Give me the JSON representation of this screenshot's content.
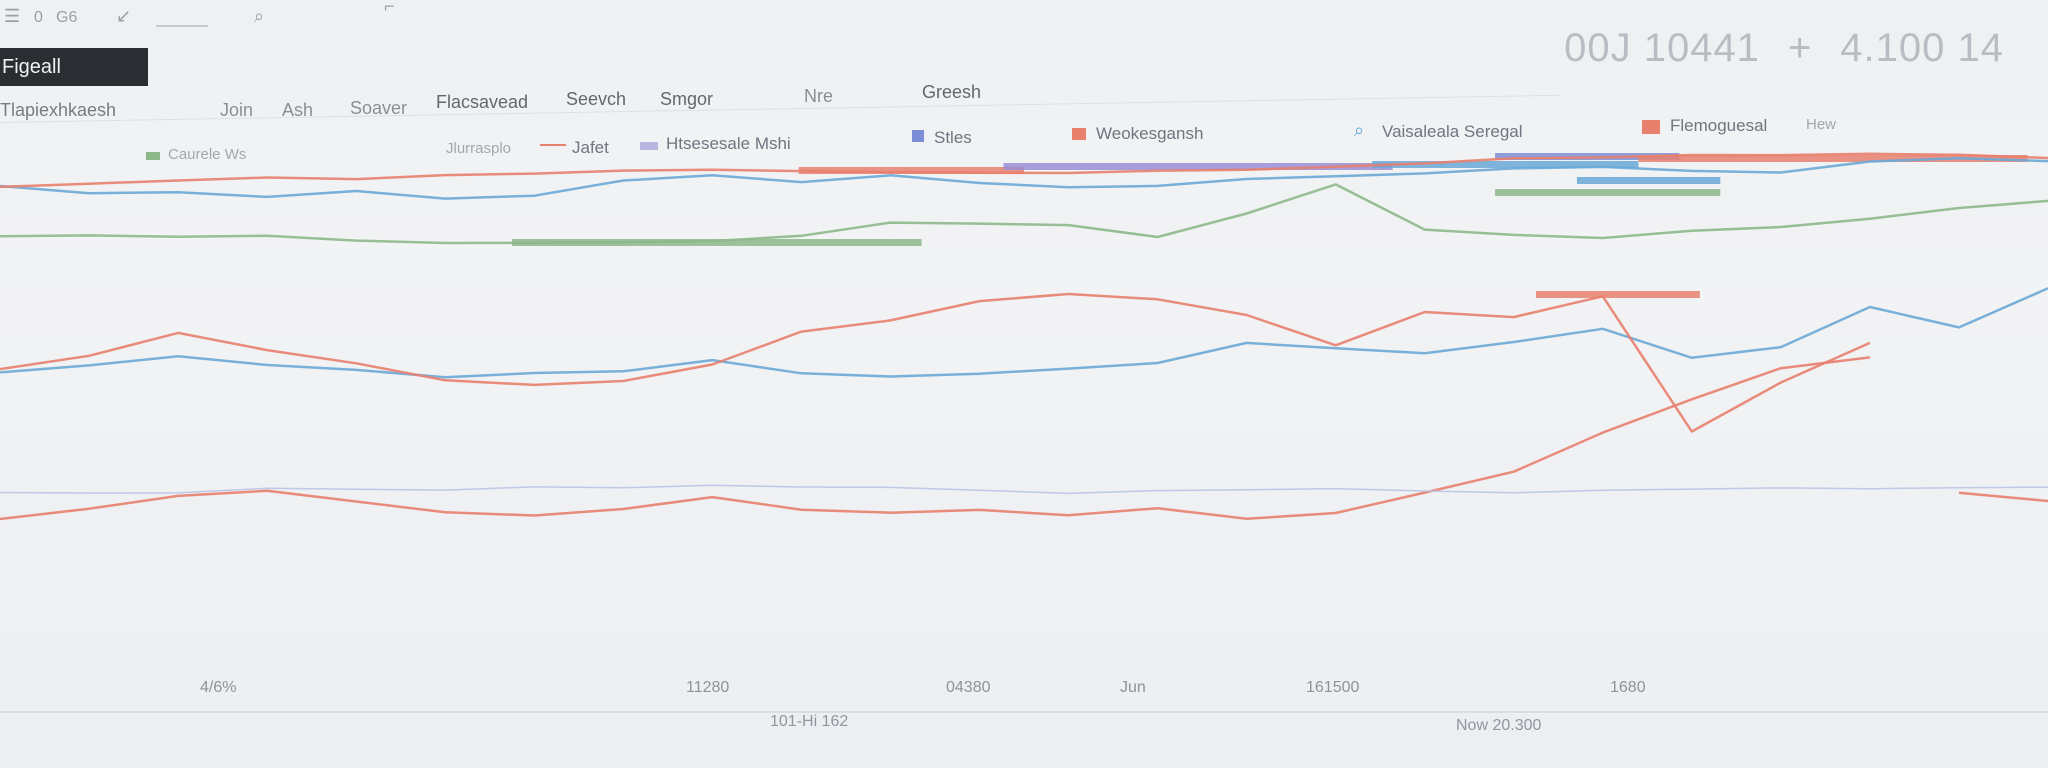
{
  "toolbar": {
    "menu_icon": "menu-icon",
    "item_a": "0",
    "item_b": "G6",
    "back_icon": "back-arrow-icon",
    "search_icon": "search-icon"
  },
  "readout": {
    "value_left": "00J 10441",
    "separator": "+",
    "value_right": "4.100 14"
  },
  "title": "Figeall",
  "subtitle": "Tlapiexhkaesh",
  "nav": [
    "Join",
    "Ash",
    "Soaver",
    "Flacsavead",
    "Seevch",
    "Smgor",
    "Nre",
    "Greesh"
  ],
  "legend": [
    {
      "label": "Caurele Ws",
      "color": "#8db88a",
      "faint": true
    },
    {
      "label": "Jlurrasplo",
      "color": "",
      "faint": true
    },
    {
      "label": "Jafet",
      "color": "#e8806e",
      "faint": false
    },
    {
      "label": "Htsesesale Mshi",
      "color": "#b9b6e0",
      "faint": false
    },
    {
      "label": "Stles",
      "color": "#7b8fd6",
      "faint": false
    },
    {
      "label": "Weokesgansh",
      "color": "#e8806e",
      "faint": false
    },
    {
      "label": "Vaisaleala Seregal",
      "color": "#6aa9d6",
      "faint": false
    },
    {
      "label": "Flemoguesal",
      "color": "#e8806e",
      "faint": false
    },
    {
      "label": "Hew",
      "color": "",
      "faint": true
    }
  ],
  "chart_data": {
    "type": "line",
    "x_tick_labels": [
      "4/6%",
      "11280",
      "04380",
      "Jun",
      "161500",
      "1680"
    ],
    "xlabel_left": "101-Hi 162",
    "xlabel_right": "Now 20.300",
    "grid": false,
    "series": [
      {
        "color": "#6aa9d6",
        "values": [
          186,
          192,
          190,
          194,
          188,
          196,
          194,
          180,
          176,
          184,
          178,
          186,
          190,
          188,
          180,
          176,
          172,
          166,
          164,
          168,
          170,
          160,
          158,
          162
        ]
      },
      {
        "color": "#e8806e",
        "values": [
          186,
          184,
          182,
          180,
          182,
          178,
          176,
          172,
          170,
          170,
          170,
          170,
          170,
          168,
          168,
          166,
          164,
          160,
          160,
          158,
          158,
          156,
          156,
          158
        ]
      },
      {
        "color": "#8db88a",
        "values": [
          238,
          236,
          236,
          234,
          238,
          240,
          240,
          240,
          240,
          236,
          224,
          226,
          228,
          240,
          216,
          186,
          230,
          234,
          236,
          228,
          224,
          216,
          206,
          200
        ]
      },
      {
        "color": "#6aa9d6",
        "values": [
          370,
          364,
          356,
          366,
          372,
          380,
          376,
          374,
          362,
          374,
          376,
          372,
          366,
          360,
          340,
          346,
          352,
          342,
          330,
          360,
          350,
          310,
          330,
          290
        ]
      },
      {
        "color": "#e8806e",
        "values": [
          372,
          358,
          334,
          350,
          362,
          378,
          382,
          378,
          362,
          330,
          320,
          302,
          296,
          302,
          318,
          348,
          314,
          318,
          296,
          430,
          380,
          340,
          null,
          null
        ]
      },
      {
        "color": "#e8806e",
        "values": [
          516,
          506,
          494,
          490,
          502,
          514,
          518,
          512,
          500,
          512,
          514,
          510,
          514,
          506,
          516,
          510,
          490,
          470,
          432,
          400,
          370,
          360,
          null,
          null
        ]
      },
      {
        "color": "#e8806e",
        "values": [
          null,
          null,
          null,
          null,
          null,
          null,
          null,
          null,
          null,
          null,
          null,
          null,
          null,
          null,
          null,
          null,
          null,
          null,
          null,
          null,
          null,
          null,
          490,
          498
        ]
      },
      {
        "color": "#b9c4e6",
        "values": [
          490,
          490,
          490,
          486,
          488,
          490,
          488,
          490,
          488,
          490,
          490,
          492,
          494,
          490,
          488,
          486,
          488,
          490,
          488,
          488,
          488,
          490,
          490,
          490
        ]
      }
    ],
    "bars": [
      {
        "color": "#e8806e",
        "x1": 0.39,
        "x2": 0.5,
        "y": 170
      },
      {
        "color": "#9a8ed6",
        "x1": 0.49,
        "x2": 0.68,
        "y": 166
      },
      {
        "color": "#6aa9d6",
        "x1": 0.67,
        "x2": 0.8,
        "y": 164
      },
      {
        "color": "#7b8fd6",
        "x1": 0.73,
        "x2": 0.82,
        "y": 156
      },
      {
        "color": "#e8806e",
        "x1": 0.8,
        "x2": 0.99,
        "y": 158
      },
      {
        "color": "#8db88a",
        "x1": 0.25,
        "x2": 0.45,
        "y": 242
      },
      {
        "color": "#8db88a",
        "x1": 0.73,
        "x2": 0.84,
        "y": 192
      },
      {
        "color": "#6aa9d6",
        "x1": 0.77,
        "x2": 0.84,
        "y": 180
      },
      {
        "color": "#e8806e",
        "x1": 0.75,
        "x2": 0.83,
        "y": 294
      }
    ]
  }
}
